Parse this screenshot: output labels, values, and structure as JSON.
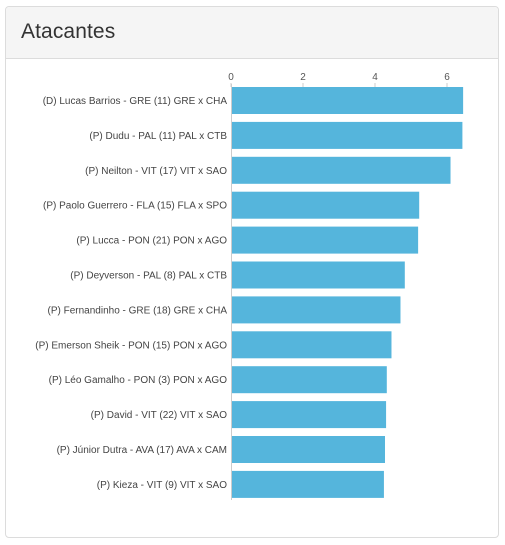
{
  "panel": {
    "title": "Atacantes"
  },
  "colors": {
    "bar": "#55b5dc",
    "axis": "#cccccc"
  },
  "chart_data": {
    "type": "bar",
    "orientation": "horizontal",
    "title": "Atacantes",
    "xlabel": "",
    "ylabel": "",
    "xlim": [
      0,
      7
    ],
    "x_ticks": [
      0,
      2,
      4,
      6
    ],
    "categories": [
      "(D) Lucas Barrios - GRE (11) GRE x CHA",
      "(P) Dudu - PAL (11) PAL x CTB",
      "(P) Neilton - VIT (17) VIT x SAO",
      "(P) Paolo Guerrero - FLA (15) FLA x SPO",
      "(P) Lucca - PON (21) PON x AGO",
      "(P) Deyverson - PAL (8) PAL x CTB",
      "(P) Fernandinho - GRE (18) GRE x CHA",
      "(P) Emerson Sheik - PON (15) PON x AGO",
      "(P) Léo Gamalho - PON (3) PON x AGO",
      "(P) David - VIT (22) VIT x SAO",
      "(P) Júnior Dutra - AVA (17) AVA x CAM",
      "(P) Kieza - VIT (9) VIT x SAO"
    ],
    "values": [
      6.42,
      6.4,
      6.07,
      5.2,
      5.17,
      4.8,
      4.68,
      4.43,
      4.3,
      4.28,
      4.25,
      4.22
    ],
    "grid": false,
    "legend": "none"
  }
}
